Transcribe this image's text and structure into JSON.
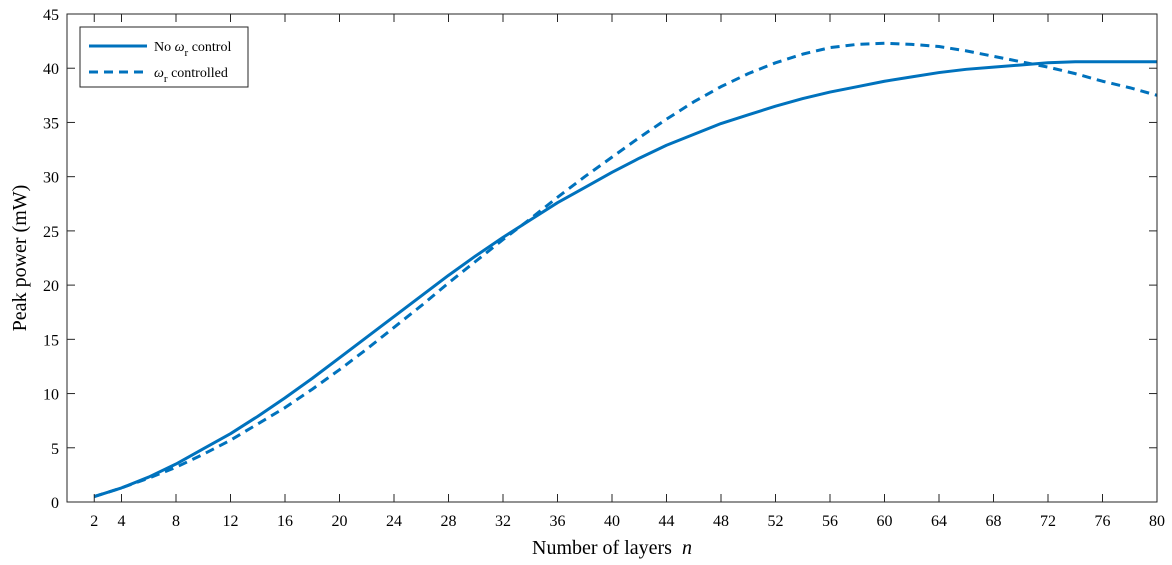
{
  "chart_data": {
    "type": "line",
    "title": "",
    "xlabel": "Number of layers",
    "xlabel_var": "n",
    "ylabel": "Peak power (mW)",
    "xlim": [
      0,
      80
    ],
    "ylim": [
      0,
      45
    ],
    "x_ticks": [
      2,
      4,
      8,
      12,
      16,
      20,
      24,
      28,
      32,
      36,
      40,
      44,
      48,
      52,
      56,
      60,
      64,
      68,
      72,
      76,
      80
    ],
    "y_ticks": [
      0,
      5,
      10,
      15,
      20,
      25,
      30,
      35,
      40,
      45
    ],
    "grid": false,
    "legend_position": "top-left",
    "line_color": "#0072BD",
    "series": [
      {
        "name": "No ωr control",
        "legend_prefix": "No ",
        "legend_symbol": "ω",
        "legend_subscript": "r",
        "legend_suffix": " control",
        "style": "solid",
        "x": [
          2,
          4,
          6,
          8,
          10,
          12,
          14,
          16,
          18,
          20,
          22,
          24,
          26,
          28,
          30,
          32,
          34,
          36,
          38,
          40,
          42,
          44,
          46,
          48,
          50,
          52,
          54,
          56,
          58,
          60,
          62,
          64,
          66,
          68,
          70,
          72,
          74,
          76,
          78,
          80
        ],
        "values": [
          0.5,
          1.3,
          2.3,
          3.5,
          4.9,
          6.3,
          7.9,
          9.6,
          11.4,
          13.3,
          15.2,
          17.1,
          19.0,
          20.9,
          22.7,
          24.4,
          26.0,
          27.6,
          29.0,
          30.4,
          31.7,
          32.9,
          33.9,
          34.9,
          35.7,
          36.5,
          37.2,
          37.8,
          38.3,
          38.8,
          39.2,
          39.6,
          39.9,
          40.1,
          40.3,
          40.5,
          40.6,
          40.6,
          40.6,
          40.6
        ]
      },
      {
        "name": "ωr controlled",
        "legend_prefix": "",
        "legend_symbol": "ω",
        "legend_subscript": "r",
        "legend_suffix": " controlled",
        "style": "dashed",
        "x": [
          2,
          4,
          6,
          8,
          10,
          12,
          14,
          16,
          18,
          20,
          22,
          24,
          26,
          28,
          30,
          32,
          34,
          36,
          38,
          40,
          42,
          44,
          46,
          48,
          50,
          52,
          54,
          56,
          58,
          60,
          62,
          64,
          66,
          68,
          70,
          72,
          74,
          76,
          78,
          80
        ],
        "values": [
          0.5,
          1.3,
          2.2,
          3.2,
          4.4,
          5.7,
          7.2,
          8.7,
          10.4,
          12.2,
          14.1,
          16.1,
          18.1,
          20.2,
          22.2,
          24.2,
          26.1,
          28.1,
          30.0,
          31.8,
          33.6,
          35.3,
          36.9,
          38.3,
          39.5,
          40.5,
          41.3,
          41.9,
          42.2,
          42.3,
          42.2,
          42.0,
          41.6,
          41.1,
          40.6,
          40.1,
          39.5,
          38.8,
          38.2,
          37.5
        ]
      }
    ]
  }
}
